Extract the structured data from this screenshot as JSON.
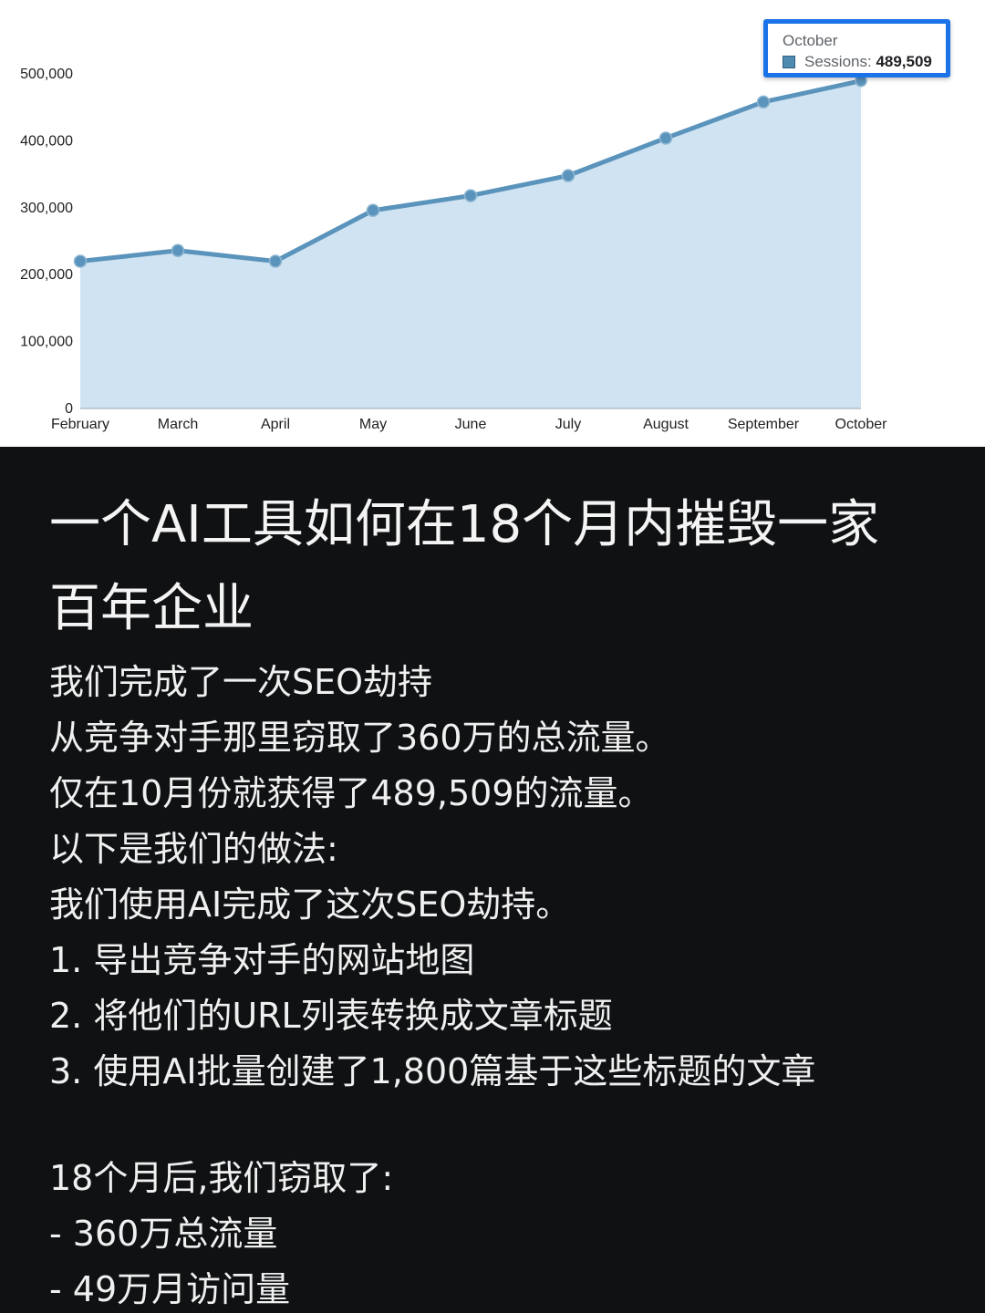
{
  "chart_data": {
    "type": "area",
    "categories": [
      "February",
      "March",
      "April",
      "May",
      "June",
      "July",
      "August",
      "September",
      "October"
    ],
    "series": [
      {
        "name": "Sessions",
        "values": [
          220000,
          236000,
          220000,
          296000,
          318000,
          348000,
          404000,
          458000,
          489509
        ]
      }
    ],
    "yticks": [
      "0",
      "100,000",
      "200,000",
      "300,000",
      "400,000",
      "500,000"
    ],
    "ytick_values": [
      0,
      100000,
      200000,
      300000,
      400000,
      500000
    ],
    "ylim": [
      0,
      500000
    ],
    "title": "",
    "xlabel": "",
    "ylabel": "",
    "grid": false,
    "colors": {
      "line": "#5a93bb",
      "fill": "#cfe3f2",
      "point": "#5a93bb"
    }
  },
  "tooltip": {
    "title": "October",
    "series_label": "Sessions:",
    "value": "489,509",
    "border_color": "#1a73e8"
  },
  "post": {
    "headline_lines": [
      "一个AI工具如何在18个月内摧毁一家",
      "百年企业"
    ],
    "lines": [
      "我们完成了一次SEO劫持",
      "从竞争对手那里窃取了360万的总流量。",
      "仅在10月份就获得了489,509的流量。",
      "以下是我们的做法:",
      "我们使用AI完成了这次SEO劫持。",
      "1. 导出竞争对手的网站地图",
      "2. 将他们的URL列表转换成文章标题",
      "3. 使用AI批量创建了1,800篇基于这些标题的文章"
    ],
    "result_lines": [
      "18个月后,我们窃取了:",
      "- 360万总流量",
      "- 49万月访问量"
    ]
  }
}
